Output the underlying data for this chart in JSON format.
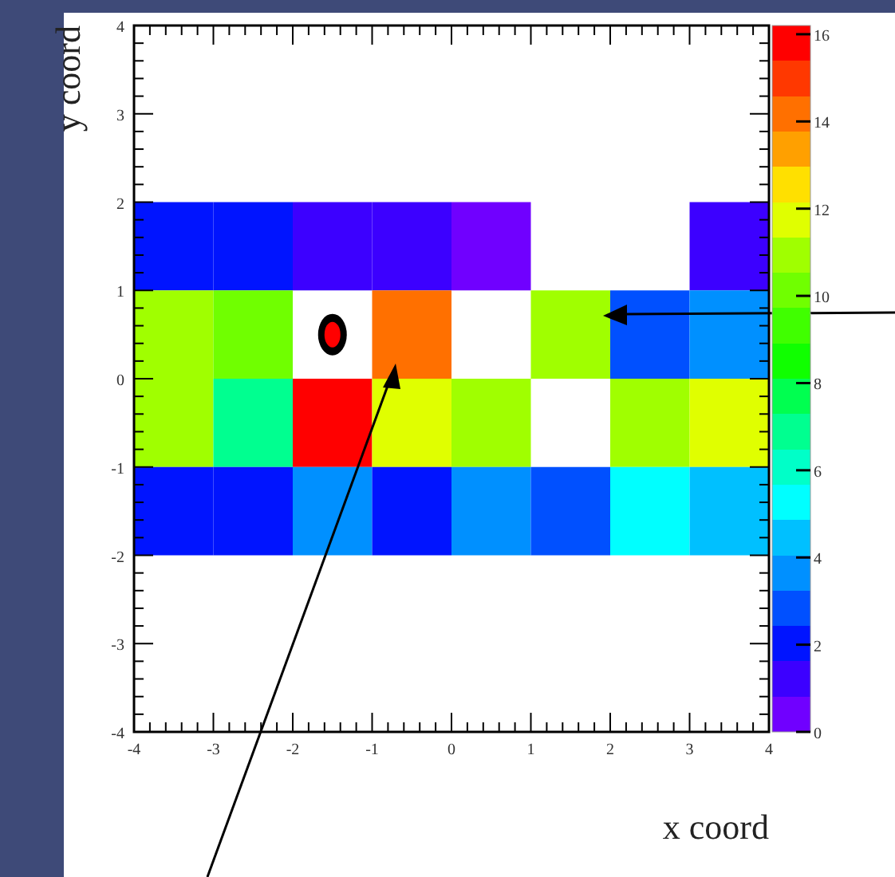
{
  "chart_data": {
    "type": "heatmap",
    "xlabel": "x coord",
    "ylabel": "y coord",
    "x": [
      -3.5,
      -2.5,
      -1.5,
      -0.5,
      0.5,
      1.5,
      2.5,
      3.5
    ],
    "y": [
      1.5,
      0.5,
      -0.5,
      -1.5
    ],
    "cells": [
      [
        2.0,
        2.0,
        1.2,
        1.2,
        0.5,
        null,
        null,
        1.2
      ],
      [
        11,
        10.2,
        null,
        14.2,
        null,
        11,
        2.9,
        3.7
      ],
      [
        11,
        7,
        16,
        12,
        11,
        null,
        11,
        12
      ],
      [
        2.0,
        2.0,
        3.7,
        2.0,
        3.7,
        2.9,
        5.3,
        4.5
      ]
    ],
    "xlim": [
      -4,
      4
    ],
    "ylim": [
      -4,
      4
    ],
    "xticks": [
      -4,
      -3,
      -2,
      -1,
      0,
      1,
      2,
      3,
      4
    ],
    "yticks": [
      -4,
      -3,
      -2,
      -1,
      0,
      1,
      2,
      3,
      4
    ],
    "clim": [
      0,
      16.2
    ],
    "cticks": [
      0,
      2,
      4,
      6,
      8,
      10,
      12,
      14,
      16
    ]
  }
}
